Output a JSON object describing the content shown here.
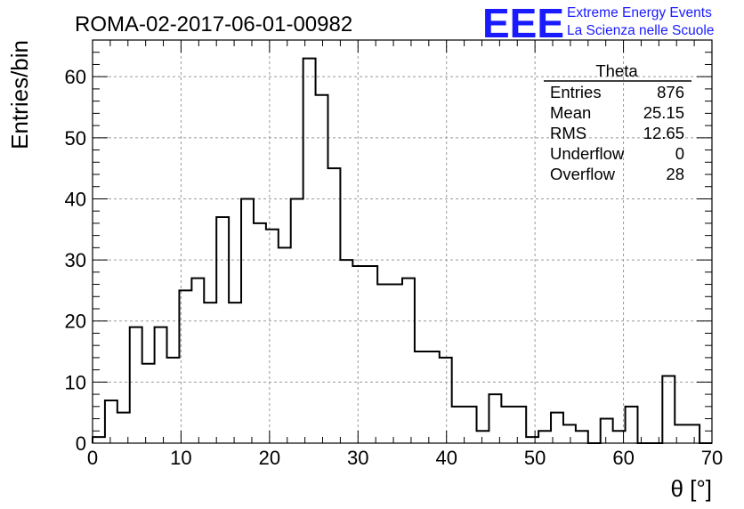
{
  "header": {
    "run_title": "ROMA-02-2017-06-01-00982",
    "logo_text": "EEE",
    "logo_line1": "Extreme Energy Events",
    "logo_line2": "La Scienza nelle Scuole"
  },
  "stats_box": {
    "title": "Theta",
    "rows": [
      {
        "label": "Entries",
        "value": "876"
      },
      {
        "label": "Mean",
        "value": "25.15"
      },
      {
        "label": "RMS",
        "value": "12.65"
      },
      {
        "label": "Underflow",
        "value": "0"
      },
      {
        "label": "Overflow",
        "value": "28"
      }
    ]
  },
  "colors": {
    "histogram_line": "#000000",
    "grid": "#9a9a9a",
    "logo": "#1a1aff"
  },
  "chart_data": {
    "type": "bar",
    "title": "ROMA-02-2017-06-01-00982",
    "xlabel": "θ [°]",
    "ylabel": "Entries/bin",
    "xlim": [
      0,
      70
    ],
    "ylim": [
      0,
      66
    ],
    "grid": true,
    "legend": "top-right",
    "x_ticks": [
      0,
      10,
      20,
      30,
      40,
      50,
      60,
      70
    ],
    "y_ticks": [
      0,
      10,
      20,
      30,
      40,
      50,
      60
    ],
    "bin_edges_start": 0,
    "bin_width": 1.4,
    "values": [
      1,
      7,
      5,
      19,
      13,
      19,
      14,
      25,
      27,
      23,
      37,
      23,
      40,
      36,
      35,
      32,
      40,
      63,
      57,
      45,
      30,
      29,
      29,
      26,
      26,
      27,
      15,
      15,
      14,
      6,
      6,
      2,
      8,
      6,
      6,
      1,
      2,
      5,
      3,
      2,
      0,
      4,
      2,
      6,
      0,
      0,
      11,
      3,
      3,
      0
    ]
  }
}
